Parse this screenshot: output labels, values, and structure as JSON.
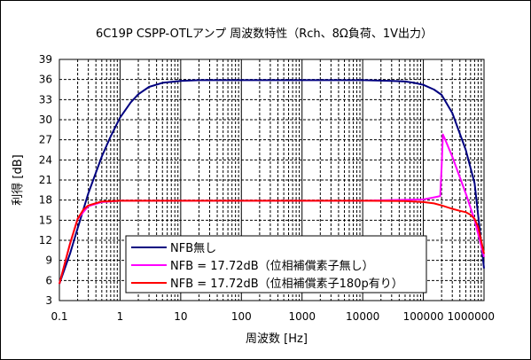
{
  "chart_data": {
    "type": "line",
    "title": "6C19P CSPP-OTLアンプ 周波数特性（Rch、8Ω負荷、1V出力）",
    "xlabel": "周波数 [Hz]",
    "ylabel": "利得 [dB]",
    "xscale": "log",
    "xlim": [
      0.1,
      1000000
    ],
    "ylim": [
      3,
      39
    ],
    "x_ticks": [
      0.1,
      1,
      10,
      100,
      1000,
      10000,
      100000,
      1000000
    ],
    "x_tick_labels": [
      "0.1",
      "1",
      "10",
      "100",
      "1000",
      "10000",
      "100000",
      "1000000"
    ],
    "y_ticks": [
      3,
      6,
      9,
      12,
      15,
      18,
      21,
      24,
      27,
      30,
      33,
      36,
      39
    ],
    "y_tick_labels": [
      "3",
      "6",
      "9",
      "12",
      "15",
      "18",
      "21",
      "24",
      "27",
      "30",
      "33",
      "36",
      "39"
    ],
    "grid": true,
    "legend_position": "bottom-left",
    "series": [
      {
        "name": "NFB無し",
        "color": "#000080",
        "x": [
          0.1,
          0.15,
          0.2,
          0.3,
          0.5,
          0.7,
          1,
          1.5,
          2,
          3,
          5,
          10,
          20,
          50,
          100,
          1000,
          10000,
          30000,
          50000,
          70000,
          100000,
          150000,
          200000,
          300000,
          500000,
          700000,
          1000000
        ],
        "y": [
          5.5,
          10,
          13.8,
          19,
          24.5,
          27.5,
          30.3,
          32.6,
          33.8,
          34.9,
          35.5,
          35.8,
          35.9,
          35.9,
          35.9,
          35.9,
          35.9,
          35.8,
          35.7,
          35.5,
          35.2,
          34.5,
          33.7,
          31,
          25.5,
          20.5,
          7.8
        ]
      },
      {
        "name": "NFB = 17.72dB（位相補償素子無し）",
        "color": "#ff00ff",
        "x": [
          0.1,
          0.15,
          0.2,
          0.3,
          0.5,
          1,
          10,
          100,
          1000,
          10000,
          100000,
          150000,
          190000,
          200000,
          210000,
          230000,
          300000,
          500000,
          700000,
          1000000
        ],
        "y": [
          5.5,
          11.5,
          15.2,
          17.1,
          17.7,
          17.9,
          17.9,
          17.9,
          17.9,
          17.9,
          18.1,
          18.4,
          18.6,
          23,
          27.8,
          27,
          24.5,
          19,
          15,
          9.5
        ]
      },
      {
        "name": "NFB = 17.72dB（位相補償素子180p有り）",
        "color": "#ff0000",
        "x": [
          0.1,
          0.15,
          0.2,
          0.25,
          0.3,
          0.5,
          1,
          10,
          100,
          1000,
          10000,
          50000,
          100000,
          150000,
          200000,
          300000,
          400000,
          500000,
          600000,
          700000,
          800000,
          1000000
        ],
        "y": [
          5.5,
          11.5,
          15.2,
          16.6,
          17.2,
          17.8,
          17.9,
          17.9,
          17.9,
          17.9,
          17.9,
          17.85,
          17.7,
          17.5,
          17.2,
          16.7,
          16.4,
          16.2,
          15.8,
          15.2,
          14,
          10
        ]
      }
    ]
  }
}
